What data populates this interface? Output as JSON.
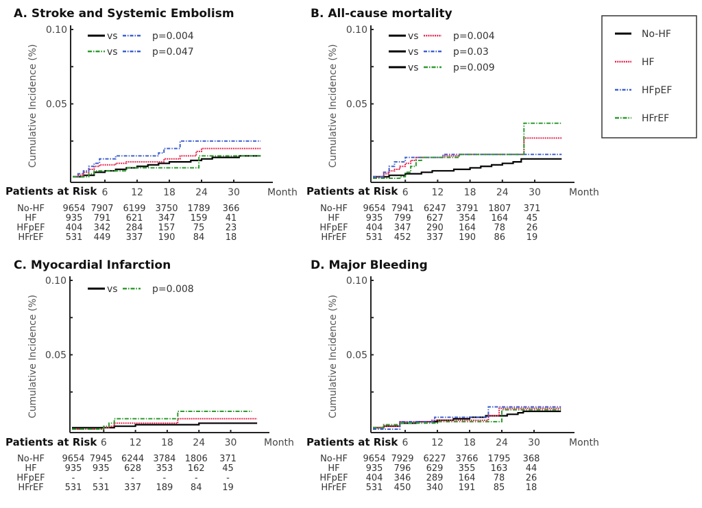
{
  "colors": {
    "No-HF": "#000000",
    "HF": "#e8254f",
    "HFpEF": "#3d5fd0",
    "HFrEF": "#2e9a2e"
  },
  "legend": {
    "entries": [
      "No-HF",
      "HF",
      "HFpEF",
      "HFrEF"
    ]
  },
  "chart_data": [
    {
      "type": "line",
      "panel": "A",
      "title": "A. Stroke and Systemic Embolism",
      "xlabel": "Month",
      "ylabel": "Cumulative Incidence (%)",
      "xlim": [
        0,
        37
      ],
      "ylim": [
        0,
        0.1
      ],
      "xticks": [
        6,
        12,
        18,
        24,
        30
      ],
      "yticks": [
        0.025,
        0.05,
        0.075,
        0.1
      ],
      "ytick_labels": [
        {
          "value": 0.1,
          "label": "0.10"
        },
        {
          "value": 0.05,
          "label": "0.05"
        }
      ],
      "comparisons": [
        {
          "a": "No-HF",
          "b": "HFpEF",
          "text": "vs",
          "p": "p=0.004"
        },
        {
          "a": "HFrEF",
          "b": "HFpEF",
          "text": "vs",
          "p": "p=0.047"
        }
      ],
      "series": [
        {
          "name": "No-HF",
          "x": [
            0,
            2,
            4,
            6,
            8,
            10,
            12,
            14,
            16,
            18,
            20,
            22,
            24,
            26,
            28,
            30,
            31,
            35
          ],
          "y": [
            0.001,
            0.002,
            0.004,
            0.005,
            0.006,
            0.007,
            0.008,
            0.009,
            0.01,
            0.011,
            0.011,
            0.012,
            0.013,
            0.014,
            0.014,
            0.014,
            0.015,
            0.015
          ]
        },
        {
          "name": "HF",
          "x": [
            0,
            1,
            2,
            3,
            4,
            5,
            8,
            10,
            16,
            17,
            20,
            23,
            24,
            35
          ],
          "y": [
            0.001,
            0.002,
            0.004,
            0.006,
            0.008,
            0.009,
            0.01,
            0.011,
            0.011,
            0.013,
            0.015,
            0.018,
            0.02,
            0.02
          ]
        },
        {
          "name": "HFpEF",
          "x": [
            0,
            1,
            2,
            3,
            4,
            5,
            8,
            16,
            17,
            20,
            35
          ],
          "y": [
            0.001,
            0.003,
            0.005,
            0.008,
            0.01,
            0.013,
            0.015,
            0.017,
            0.02,
            0.025,
            0.025
          ]
        },
        {
          "name": "HFrEF",
          "x": [
            0,
            2,
            3,
            4,
            10,
            23.5,
            35
          ],
          "y": [
            0.001,
            0.001,
            0.003,
            0.005,
            0.007,
            0.015,
            0.015
          ]
        }
      ],
      "risk_table": {
        "header": "Patients at Risk",
        "rows": [
          {
            "group": "No-HF",
            "values": [
              "9654",
              "7907",
              "6199",
              "3750",
              "1789",
              "366"
            ]
          },
          {
            "group": "HF",
            "values": [
              "935",
              "791",
              "621",
              "347",
              "159",
              "41"
            ]
          },
          {
            "group": "HFpEF",
            "values": [
              "404",
              "342",
              "284",
              "157",
              "75",
              "23"
            ]
          },
          {
            "group": "HFrEF",
            "values": [
              "531",
              "449",
              "337",
              "190",
              "84",
              "18"
            ]
          }
        ]
      }
    },
    {
      "type": "line",
      "panel": "B",
      "title": "B. All-cause mortality",
      "xlabel": "Month",
      "ylabel": "Cumulative Incidence (%)",
      "xlim": [
        0,
        37
      ],
      "ylim": [
        0,
        0.1
      ],
      "xticks": [
        6,
        12,
        18,
        24,
        30
      ],
      "yticks": [
        0.025,
        0.05,
        0.075,
        0.1
      ],
      "ytick_labels": [
        {
          "value": 0.1,
          "label": "0.10"
        },
        {
          "value": 0.05,
          "label": "0.05"
        }
      ],
      "comparisons": [
        {
          "a": "No-HF",
          "b": "HF",
          "text": "vs",
          "p": "p=0.004"
        },
        {
          "a": "No-HF",
          "b": "HFpEF",
          "text": "vs",
          "p": "p=0.03"
        },
        {
          "a": "No-HF",
          "b": "HFrEF",
          "text": "vs",
          "p": "p=0.009"
        }
      ],
      "series": [
        {
          "name": "No-HF",
          "x": [
            0,
            3,
            6,
            9,
            11,
            15,
            18,
            20,
            22,
            24,
            26,
            27.5,
            35
          ],
          "y": [
            0.001,
            0.002,
            0.003,
            0.004,
            0.005,
            0.006,
            0.007,
            0.008,
            0.009,
            0.01,
            0.011,
            0.013,
            0.013
          ]
        },
        {
          "name": "HF",
          "x": [
            0,
            2,
            3,
            4,
            5,
            6,
            7,
            8,
            13,
            16,
            28,
            35
          ],
          "y": [
            0.001,
            0.003,
            0.005,
            0.006,
            0.008,
            0.01,
            0.012,
            0.014,
            0.015,
            0.016,
            0.027,
            0.027
          ]
        },
        {
          "name": "HFpEF",
          "x": [
            0,
            2,
            3,
            4,
            6,
            13,
            28,
            35
          ],
          "y": [
            0.001,
            0.004,
            0.008,
            0.011,
            0.014,
            0.016,
            0.016,
            0.016
          ]
        },
        {
          "name": "HFrEF",
          "x": [
            0,
            5,
            6,
            7,
            8,
            9,
            13,
            16,
            28,
            35
          ],
          "y": [
            0.0,
            0.001,
            0.004,
            0.008,
            0.012,
            0.014,
            0.014,
            0.016,
            0.037,
            0.037
          ]
        }
      ],
      "risk_table": {
        "header": "Patients at Risk",
        "rows": [
          {
            "group": "No-HF",
            "values": [
              "9654",
              "7941",
              "6247",
              "3791",
              "1807",
              "371"
            ]
          },
          {
            "group": "HF",
            "values": [
              "935",
              "799",
              "627",
              "354",
              "164",
              "45"
            ]
          },
          {
            "group": "HFpEF",
            "values": [
              "404",
              "347",
              "290",
              "164",
              "78",
              "26"
            ]
          },
          {
            "group": "HFrEF",
            "values": [
              "531",
              "452",
              "337",
              "190",
              "86",
              "19"
            ]
          }
        ]
      }
    },
    {
      "type": "line",
      "panel": "C",
      "title": "C. Myocardial Infarction",
      "xlabel": "Month",
      "ylabel": "Cumulative Incidence (%)",
      "xlim": [
        0,
        37
      ],
      "ylim": [
        0,
        0.1
      ],
      "xticks": [
        6,
        12,
        18,
        24,
        30
      ],
      "yticks": [
        0.025,
        0.05,
        0.075,
        0.1
      ],
      "ytick_labels": [
        {
          "value": 0.1,
          "label": "0.10"
        },
        {
          "value": 0.05,
          "label": "0.05"
        }
      ],
      "comparisons": [
        {
          "a": "No-HF",
          "b": "HFrEF",
          "text": "vs",
          "p": "p=0.008"
        }
      ],
      "series": [
        {
          "name": "No-HF",
          "x": [
            0,
            6,
            8,
            12,
            18,
            24,
            35
          ],
          "y": [
            0.001,
            0.001,
            0.002,
            0.003,
            0.003,
            0.004,
            0.004
          ]
        },
        {
          "name": "HF",
          "x": [
            0,
            6,
            7,
            8,
            20,
            35
          ],
          "y": [
            0.0,
            0.001,
            0.002,
            0.004,
            0.007,
            0.007
          ]
        },
        {
          "name": "HFrEF",
          "x": [
            0,
            6,
            7,
            8,
            20,
            34
          ],
          "y": [
            0.0,
            0.002,
            0.004,
            0.007,
            0.012,
            0.012
          ]
        }
      ],
      "risk_table": {
        "header": "Patients at Risk",
        "rows": [
          {
            "group": "No-HF",
            "values": [
              "9654",
              "7945",
              "6244",
              "3784",
              "1806",
              "371"
            ]
          },
          {
            "group": "HF",
            "values": [
              "935",
              "935",
              "628",
              "353",
              "162",
              "45"
            ]
          },
          {
            "group": "HFpEF",
            "values": [
              "-",
              "-",
              "-",
              "-",
              "-",
              "-"
            ]
          },
          {
            "group": "HFrEF",
            "values": [
              "531",
              "531",
              "337",
              "189",
              "84",
              "19"
            ]
          }
        ]
      }
    },
    {
      "type": "line",
      "panel": "D",
      "title": "D. Major Bleeding",
      "xlabel": "Month",
      "ylabel": "Cumulative Incidence (%)",
      "xlim": [
        0,
        37
      ],
      "ylim": [
        0,
        0.1
      ],
      "xticks": [
        6,
        12,
        18,
        24,
        30
      ],
      "yticks": [
        0.025,
        0.05,
        0.075,
        0.1
      ],
      "ytick_labels": [
        {
          "value": 0.1,
          "label": "0.10"
        },
        {
          "value": 0.05,
          "label": "0.05"
        }
      ],
      "comparisons": [],
      "series": [
        {
          "name": "No-HF",
          "x": [
            0,
            2,
            5,
            8,
            12,
            15,
            18,
            21,
            23,
            25,
            27,
            28,
            35
          ],
          "y": [
            0.001,
            0.002,
            0.004,
            0.005,
            0.006,
            0.007,
            0.008,
            0.009,
            0.009,
            0.01,
            0.011,
            0.012,
            0.012
          ]
        },
        {
          "name": "HF",
          "x": [
            0,
            2,
            5,
            11,
            21.5,
            23.5,
            35
          ],
          "y": [
            0.001,
            0.002,
            0.005,
            0.006,
            0.009,
            0.014,
            0.014
          ]
        },
        {
          "name": "HFpEF",
          "x": [
            0,
            5,
            11.5,
            21.5,
            35
          ],
          "y": [
            0.0,
            0.005,
            0.008,
            0.015,
            0.015
          ]
        },
        {
          "name": "HFrEF",
          "x": [
            0,
            2,
            5,
            12,
            24,
            35
          ],
          "y": [
            0.001,
            0.003,
            0.004,
            0.005,
            0.013,
            0.013
          ]
        }
      ],
      "risk_table": {
        "header": "Patients at Risk",
        "rows": [
          {
            "group": "No-HF",
            "values": [
              "9654",
              "7929",
              "6227",
              "3766",
              "1795",
              "368"
            ]
          },
          {
            "group": "HF",
            "values": [
              "935",
              "796",
              "629",
              "355",
              "163",
              "44"
            ]
          },
          {
            "group": "HFpEF",
            "values": [
              "404",
              "346",
              "289",
              "164",
              "78",
              "26"
            ]
          },
          {
            "group": "HFrEF",
            "values": [
              "531",
              "450",
              "340",
              "191",
              "85",
              "18"
            ]
          }
        ]
      }
    }
  ]
}
